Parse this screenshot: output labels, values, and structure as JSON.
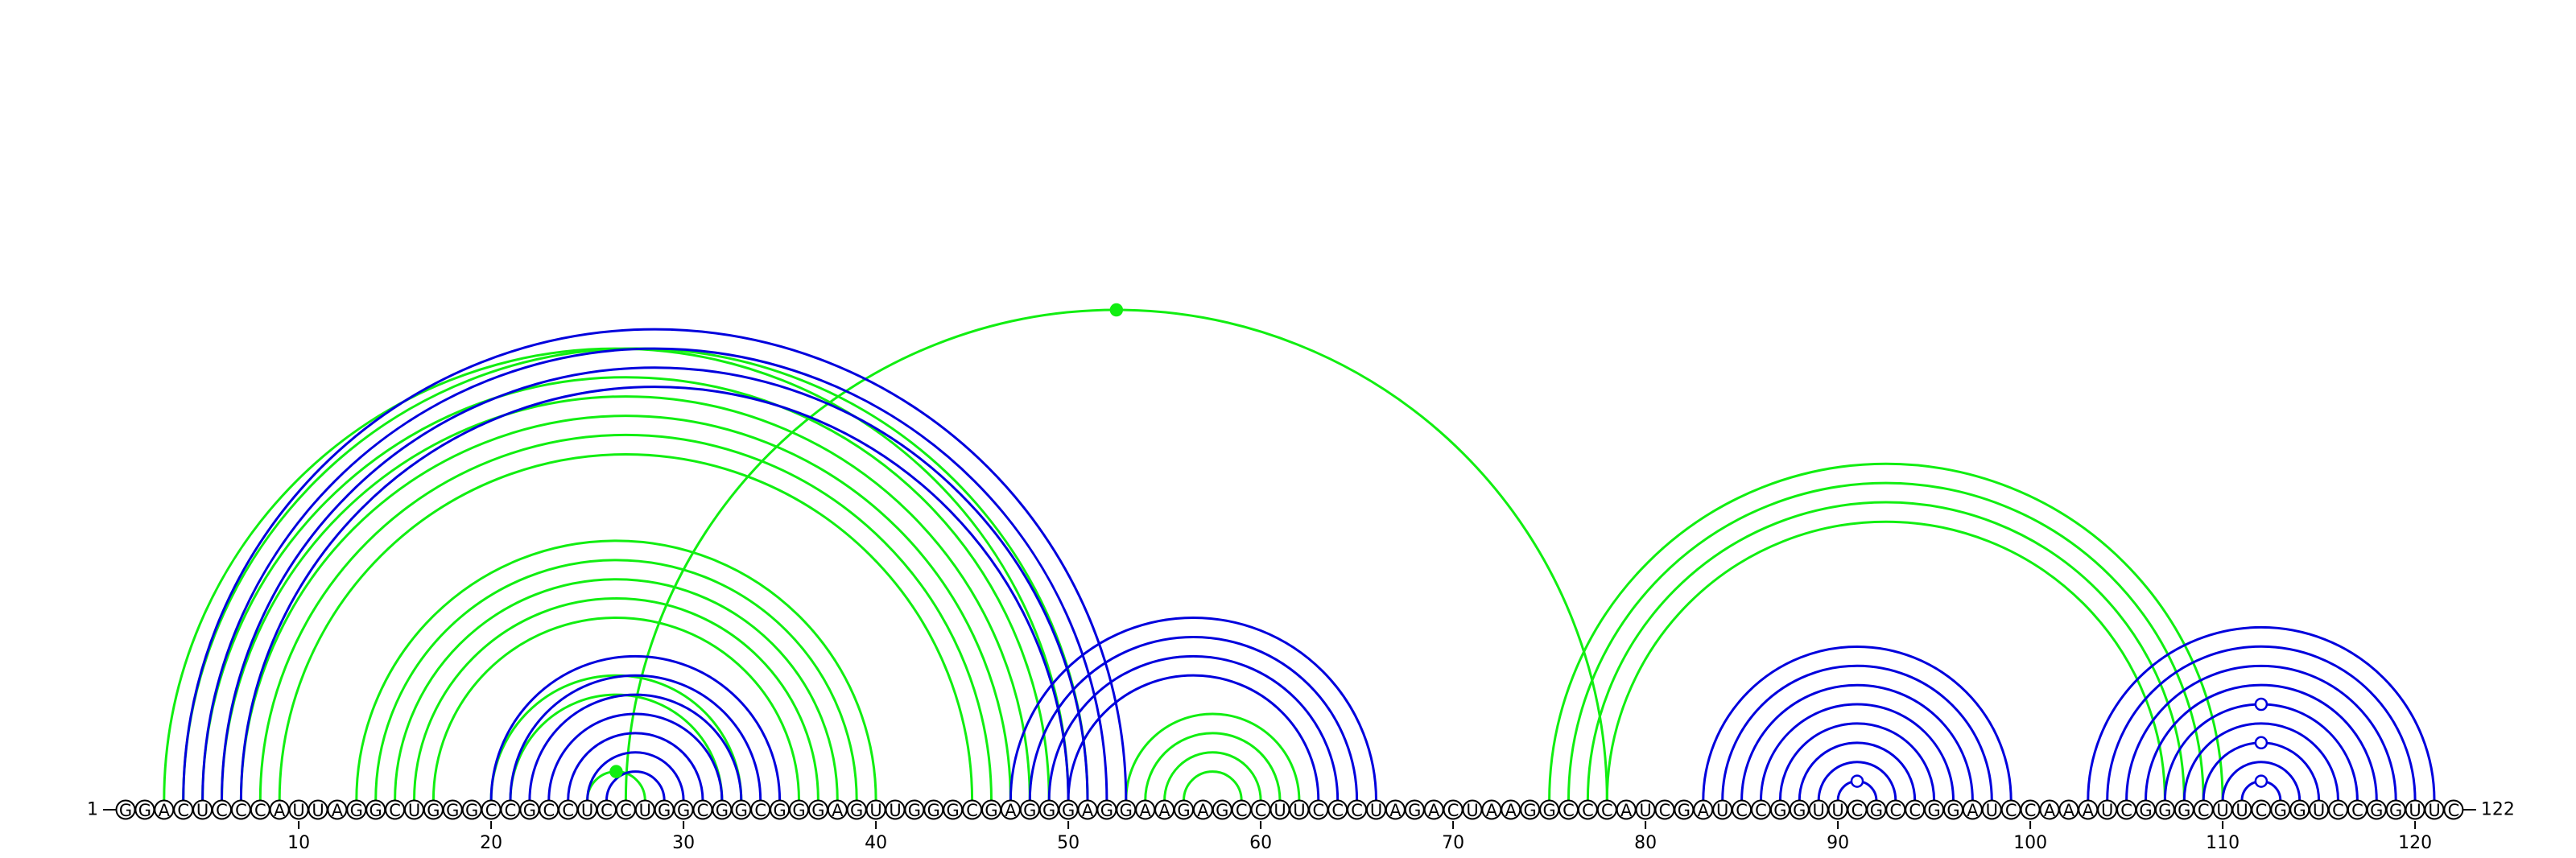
{
  "diagram": {
    "sequence": "GGACUCCCAUUAGGCUGGGCCGCCUCCUGGCGGCGGGAGUUGGGCGAGGGAGGAAGAGCCUUCCCUAGACUAAGGCCCAUCGAUCCGGUUCGCCGGAUCCAAAUCGGGCUUCGGUCCGGUUC",
    "start_label": "1",
    "end_label": "122",
    "ticks": [
      10,
      20,
      30,
      40,
      50,
      60,
      70,
      80,
      90,
      100,
      110,
      120
    ],
    "colors": {
      "blue": "#0000dd",
      "green": "#11ee11",
      "backbone": "#000000"
    },
    "arc_sets": [
      {
        "color": "green",
        "pairs": [
          [
            3,
            50
          ],
          [
            27,
            78
          ],
          [
            4,
            51
          ]
        ]
      },
      {
        "color": "green",
        "pairs": [
          [
            5,
            49
          ],
          [
            6,
            48
          ],
          [
            7,
            47
          ],
          [
            8,
            46
          ],
          [
            9,
            45
          ],
          [
            13,
            40
          ],
          [
            14,
            39
          ],
          [
            15,
            38
          ],
          [
            16,
            37
          ],
          [
            17,
            36
          ]
        ]
      },
      {
        "color": "green",
        "pairs": [
          [
            20,
            33
          ],
          [
            21,
            32
          ],
          [
            25,
            28
          ]
        ]
      },
      {
        "color": "green",
        "pairs": [
          [
            53,
            62
          ],
          [
            54,
            61
          ],
          [
            55,
            60
          ],
          [
            56,
            59
          ],
          [
            75,
            110
          ],
          [
            76,
            109
          ],
          [
            77,
            108
          ],
          [
            78,
            107
          ]
        ]
      },
      {
        "color": "blue",
        "pairs": [
          [
            4,
            53
          ],
          [
            5,
            52
          ],
          [
            6,
            51
          ],
          [
            7,
            50
          ]
        ]
      },
      {
        "color": "blue",
        "pairs": [
          [
            20,
            35
          ],
          [
            21,
            34
          ],
          [
            22,
            33
          ],
          [
            23,
            32
          ],
          [
            24,
            31
          ],
          [
            25,
            30
          ],
          [
            26,
            29
          ]
        ]
      },
      {
        "color": "blue",
        "pairs": [
          [
            47,
            66
          ],
          [
            48,
            65
          ],
          [
            49,
            64
          ],
          [
            50,
            63
          ]
        ]
      },
      {
        "color": "blue",
        "pairs": [
          [
            83,
            99
          ],
          [
            84,
            98
          ],
          [
            85,
            97
          ],
          [
            86,
            96
          ],
          [
            87,
            95
          ],
          [
            88,
            94
          ],
          [
            89,
            93
          ],
          [
            90,
            92
          ]
        ]
      },
      {
        "color": "blue",
        "pairs": [
          [
            103,
            121
          ],
          [
            104,
            120
          ],
          [
            105,
            119
          ],
          [
            106,
            118
          ],
          [
            107,
            117
          ],
          [
            108,
            116
          ],
          [
            109,
            115
          ],
          [
            110,
            114
          ],
          [
            111,
            113
          ]
        ]
      }
    ],
    "markers": [
      {
        "color": "green",
        "filled": true,
        "pair": [
          27,
          78
        ]
      },
      {
        "color": "green",
        "filled": true,
        "pair": [
          25,
          28
        ]
      },
      {
        "color": "blue",
        "filled": false,
        "pair": [
          90,
          92
        ]
      },
      {
        "color": "blue",
        "filled": false,
        "pair": [
          107,
          117
        ]
      },
      {
        "color": "blue",
        "filled": false,
        "pair": [
          109,
          115
        ]
      },
      {
        "color": "blue",
        "filled": false,
        "pair": [
          111,
          113
        ]
      }
    ]
  }
}
